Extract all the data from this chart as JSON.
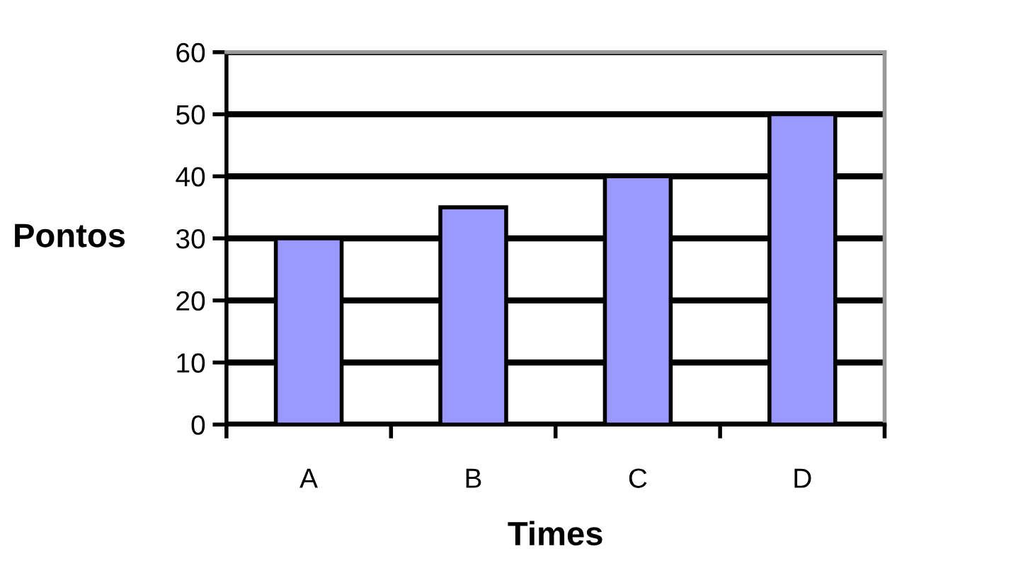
{
  "chart_data": {
    "type": "bar",
    "xlabel": "Times",
    "ylabel": "Pontos",
    "categories": [
      "A",
      "B",
      "C",
      "D"
    ],
    "values": [
      30,
      35,
      40,
      50
    ],
    "color": "#9999ff",
    "ylim": [
      0,
      60
    ],
    "yticks": [
      0,
      10,
      20,
      30,
      40,
      50,
      60
    ],
    "grid": "y",
    "legend": false
  }
}
